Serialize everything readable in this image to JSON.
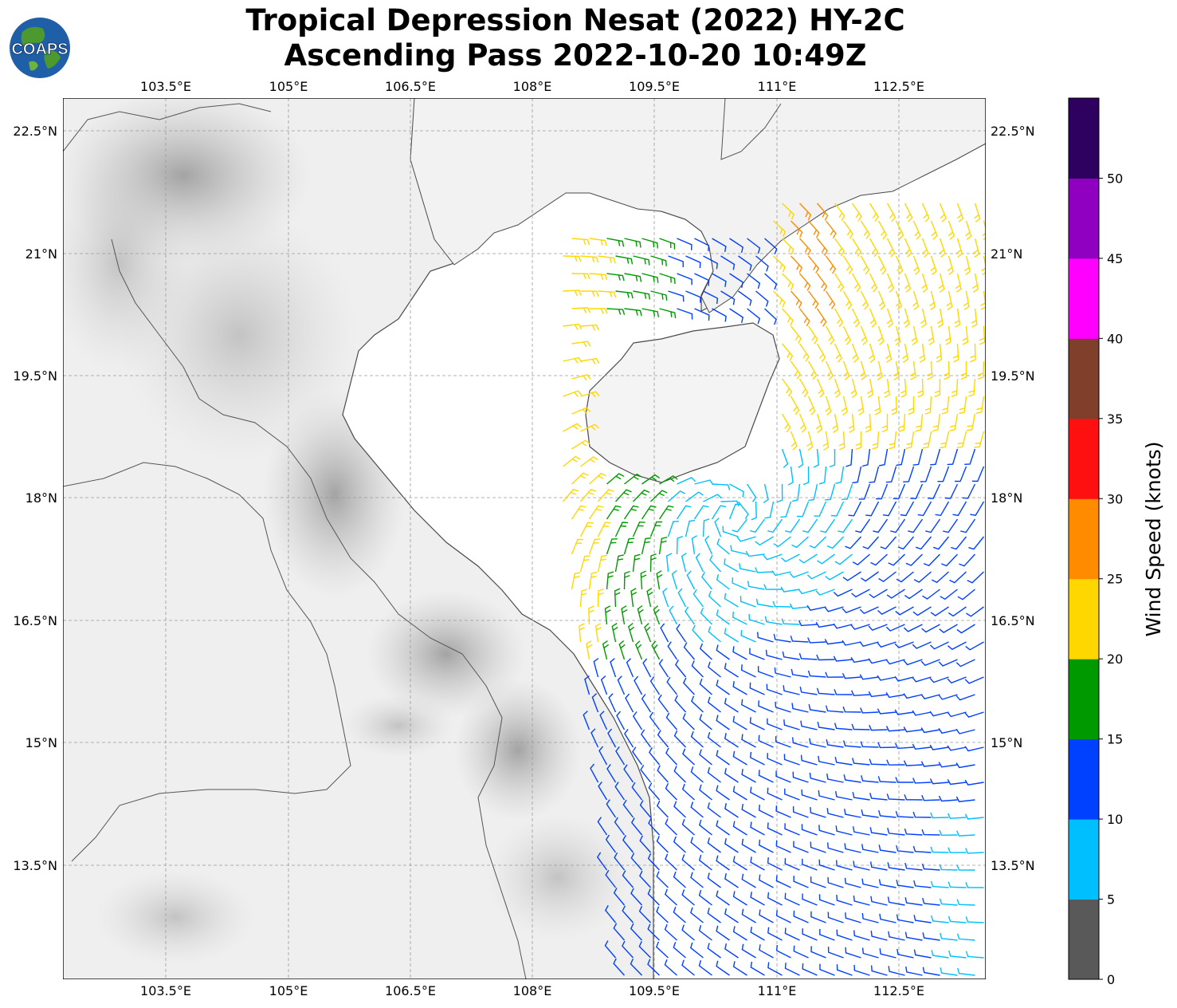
{
  "title": {
    "line1": "Tropical Depression Nesat (2022) HY-2C",
    "line2": "Ascending Pass 2022-10-20 10:49Z"
  },
  "logo": {
    "text": "COAPS"
  },
  "map": {
    "lon_range": [
      102.2,
      113.5
    ],
    "lat_range": [
      11.8,
      22.9
    ],
    "lon_ticks": [
      "103.5°E",
      "105°E",
      "106.5°E",
      "108°E",
      "109.5°E",
      "111°E",
      "112.5°E"
    ],
    "lat_ticks": [
      "22.5°N",
      "21°N",
      "19.5°N",
      "18°N",
      "16.5°N",
      "15°N",
      "13.5°N"
    ],
    "background": "grayscale terrain",
    "gridlines": true
  },
  "colorbar": {
    "title": "Wind Speed (knots)",
    "labels": [
      "0",
      "5",
      "10",
      "15",
      "20",
      "25",
      "30",
      "35",
      "40",
      "45",
      "50"
    ],
    "colors": [
      "#595959",
      "#00bfff",
      "#0040ff",
      "#009900",
      "#ffd700",
      "#ff8c00",
      "#ff1010",
      "#7f3f2a",
      "#ff00ff",
      "#8f00c0",
      "#2e0060"
    ]
  }
}
